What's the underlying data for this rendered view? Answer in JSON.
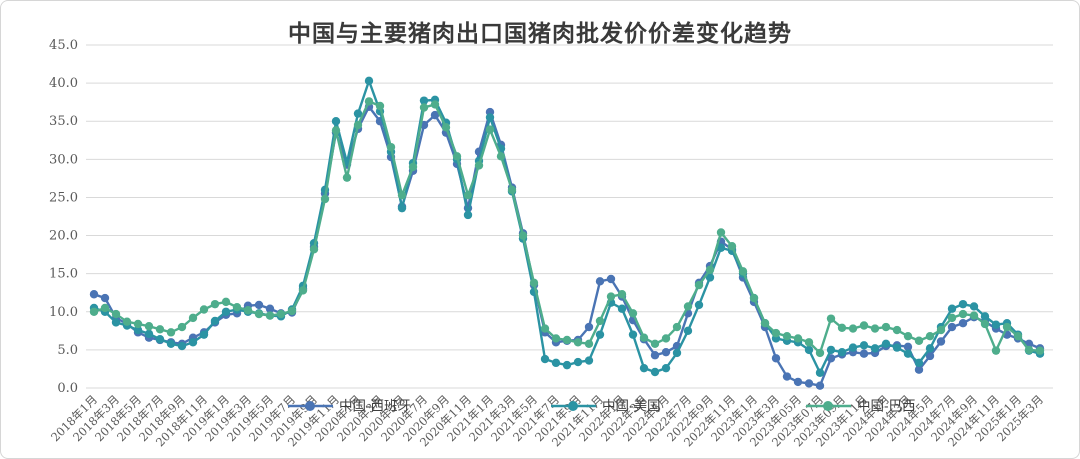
{
  "chart_data": {
    "type": "line",
    "title": "中国与主要猪肉出口国猪肉批发价价差变化趋势",
    "ylabel": "",
    "xlabel": "",
    "ylim": [
      0,
      45
    ],
    "y_tick_step": 5,
    "y_tick_labels": [
      "0.0",
      "5.0",
      "10.0",
      "15.0",
      "20.0",
      "25.0",
      "30.0",
      "35.0",
      "40.0",
      "45.0"
    ],
    "grid": "horizontal",
    "legend_position": "bottom-overlapping-axis",
    "x_tick_interval": 2,
    "x": [
      "2018年1月",
      "2018年2月",
      "2018年3月",
      "2018年4月",
      "2018年5月",
      "2018年6月",
      "2018年7月",
      "2018年8月",
      "2018年9月",
      "2018年10月",
      "2018年11月",
      "2018年12月",
      "2019年1月",
      "2019年2月",
      "2019年3月",
      "2019年4月",
      "2019年5月",
      "2019年6月",
      "2019年7月",
      "2019年8月",
      "2019年9月",
      "2019年10月",
      "2019年11月",
      "2019年12月",
      "2020年1月",
      "2020年2月",
      "2020年3月",
      "2020年4月",
      "2020年5月",
      "2020年6月",
      "2020年7月",
      "2020年8月",
      "2020年9月",
      "2020年10月",
      "2020年11月",
      "2020年12月",
      "2021年1月",
      "2021年2月",
      "2021年3月",
      "2021年4月",
      "2021年5月",
      "2021年6月",
      "2021年7月",
      "2021年8月",
      "2021年9月",
      "2021年10月",
      "2021年11月",
      "2021年12月",
      "2022年1月",
      "2022年2月",
      "2022年3月",
      "2022年4月",
      "2022年5月",
      "2022年6月",
      "2022年7月",
      "2022年8月",
      "2022年9月",
      "2022年10月",
      "2022年11月",
      "2022年12月",
      "2023年1月",
      "2023年2月",
      "2023年3月",
      "2023年4月",
      "2023年05月",
      "2023年6月",
      "2023年07月",
      "2023年8月",
      "2023年09月",
      "2023年10月",
      "2023年11月",
      "2023年12月",
      "2024年1月",
      "2024年2月",
      "2024年3月",
      "2024年4月",
      "2024年5月",
      "2024年6月",
      "2024年7月",
      "2024年8月",
      "2024年9月",
      "2024年10月",
      "2024年11月",
      "2024年12月",
      "2025年1月",
      "2025年2月",
      "2025年3月"
    ],
    "series": [
      {
        "name": "中国-西班牙",
        "color": "#4a74b4",
        "values": [
          12.3,
          11.8,
          9.2,
          8.4,
          7.3,
          6.6,
          6.3,
          6.0,
          5.8,
          6.6,
          7.3,
          8.6,
          9.6,
          9.8,
          10.8,
          10.9,
          10.4,
          9.8,
          9.9,
          13.0,
          18.5,
          25.5,
          33.5,
          29.3,
          34.0,
          36.9,
          35.0,
          30.3,
          23.8,
          28.5,
          34.5,
          35.8,
          33.5,
          29.4,
          23.6,
          31.0,
          36.2,
          31.9,
          26.3,
          20.3,
          13.5,
          7.3,
          6.0,
          6.2,
          6.3,
          8.0,
          14.0,
          14.3,
          12.0,
          8.9,
          6.4,
          4.3,
          4.7,
          5.5,
          9.8,
          13.8,
          16.0,
          19.2,
          18.2,
          14.5,
          11.3,
          8.0,
          3.9,
          1.5,
          0.8,
          0.6,
          0.3,
          3.9,
          4.4,
          4.7,
          4.5,
          4.6,
          5.5,
          5.6,
          5.4,
          2.4,
          4.2,
          6.1,
          8.0,
          8.5,
          9.3,
          8.7,
          7.8,
          7.0,
          6.5,
          5.8,
          5.2
        ]
      },
      {
        "name": "中国-美国",
        "color": "#2b93a3",
        "values": [
          10.5,
          10.0,
          8.6,
          8.2,
          7.6,
          7.1,
          6.4,
          5.8,
          5.5,
          6.0,
          7.0,
          8.8,
          10.0,
          10.3,
          10.0,
          9.8,
          9.5,
          9.4,
          10.3,
          13.4,
          19.0,
          26.0,
          35.0,
          29.6,
          36.0,
          40.3,
          36.3,
          31.0,
          23.6,
          29.5,
          37.7,
          37.8,
          34.8,
          30.0,
          22.7,
          29.8,
          35.5,
          31.4,
          25.8,
          19.6,
          12.6,
          3.8,
          3.3,
          3.0,
          3.4,
          3.6,
          7.0,
          11.2,
          10.4,
          7.0,
          2.6,
          2.1,
          2.6,
          4.6,
          7.5,
          10.9,
          14.5,
          18.4,
          18.0,
          15.0,
          11.8,
          8.5,
          6.5,
          6.2,
          6.0,
          5.0,
          2.0,
          5.0,
          4.7,
          5.3,
          5.6,
          5.2,
          5.8,
          5.3,
          4.5,
          3.3,
          5.2,
          8.0,
          10.4,
          11.0,
          10.7,
          9.4,
          8.3,
          8.5,
          7.0,
          4.9,
          4.5
        ]
      },
      {
        "name": "中国-巴西",
        "color": "#4ead8c",
        "values": [
          10.0,
          10.5,
          9.7,
          8.7,
          8.4,
          8.1,
          7.7,
          7.3,
          8.0,
          9.2,
          10.3,
          11.0,
          11.3,
          10.6,
          10.2,
          9.7,
          9.5,
          9.7,
          10.1,
          12.8,
          18.2,
          24.8,
          33.8,
          27.6,
          34.5,
          37.6,
          37.0,
          31.6,
          25.3,
          29.0,
          36.8,
          37.2,
          34.2,
          30.4,
          25.3,
          29.2,
          33.9,
          30.4,
          26.0,
          20.0,
          13.8,
          7.8,
          6.5,
          6.3,
          6.0,
          5.8,
          8.8,
          12.0,
          12.3,
          9.8,
          6.6,
          5.8,
          6.5,
          8.0,
          10.7,
          13.5,
          15.5,
          20.4,
          18.6,
          15.3,
          11.8,
          8.5,
          7.2,
          6.8,
          6.5,
          6.0,
          4.6,
          9.1,
          7.9,
          7.8,
          8.2,
          7.8,
          8.0,
          7.6,
          6.8,
          6.2,
          6.8,
          7.6,
          9.2,
          9.7,
          9.5,
          8.4,
          4.9,
          8.0,
          6.8,
          5.0,
          4.9
        ]
      }
    ]
  },
  "style": {
    "grid_color": "#d9d9d9",
    "tick_color": "#595959",
    "title_color": "#3a3a3a",
    "background": "#ffffff"
  }
}
